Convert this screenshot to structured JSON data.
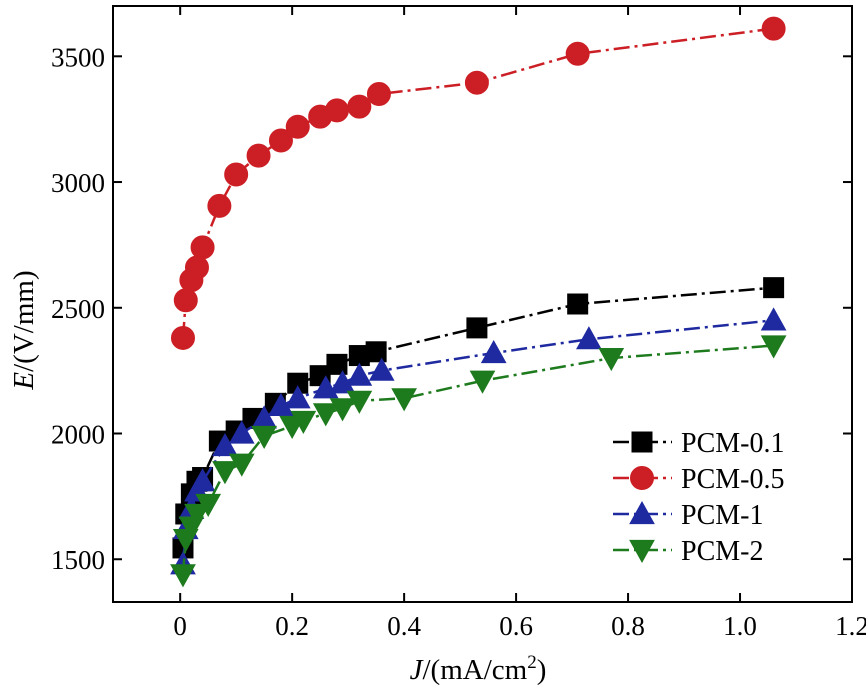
{
  "chart_data": {
    "type": "line",
    "title": "",
    "xlabel": {
      "italic": "J",
      "text": "/(mA/cm",
      "sup": "2",
      "close": ")"
    },
    "ylabel": {
      "italic": "E",
      "text": "/(V/mm)"
    },
    "xlim": [
      -0.12,
      1.2
    ],
    "ylim": [
      1330,
      3700
    ],
    "xticks": [
      0,
      0.2,
      0.4,
      0.6,
      0.8,
      1.0,
      1.2
    ],
    "xtick_labels": [
      "0",
      "0.2",
      "0.4",
      "0.6",
      "0.8",
      "1.0",
      "1.2"
    ],
    "yticks": [
      1500,
      2000,
      2500,
      3000,
      3500
    ],
    "ytick_labels": [
      "1500",
      "2000",
      "2500",
      "3000",
      "3500"
    ],
    "grid": false,
    "legend_position": "bottom-right",
    "series": [
      {
        "name": "PCM-0.1",
        "color": "#000000",
        "marker": "square",
        "dash": "dashdot",
        "x": [
          0.005,
          0.01,
          0.02,
          0.03,
          0.04,
          0.07,
          0.1,
          0.13,
          0.17,
          0.21,
          0.25,
          0.28,
          0.32,
          0.35,
          0.53,
          0.71,
          1.06
        ],
        "y": [
          1545,
          1680,
          1760,
          1810,
          1825,
          1970,
          2010,
          2060,
          2120,
          2200,
          2230,
          2275,
          2310,
          2325,
          2420,
          2515,
          2580
        ]
      },
      {
        "name": "PCM-0.5",
        "color": "#cc1f25",
        "marker": "circle",
        "dash": "dashdot",
        "x": [
          0.005,
          0.01,
          0.02,
          0.03,
          0.04,
          0.07,
          0.1,
          0.14,
          0.18,
          0.21,
          0.25,
          0.28,
          0.32,
          0.355,
          0.53,
          0.71,
          1.06
        ],
        "y": [
          2380,
          2530,
          2610,
          2660,
          2740,
          2905,
          3030,
          3105,
          3165,
          3220,
          3260,
          3285,
          3300,
          3350,
          3395,
          3510,
          3610
        ]
      },
      {
        "name": "PCM-1",
        "color": "#1f2aa0",
        "marker": "triangle-up",
        "dash": "dashdot",
        "x": [
          0.005,
          0.01,
          0.02,
          0.03,
          0.04,
          0.08,
          0.11,
          0.15,
          0.18,
          0.21,
          0.26,
          0.29,
          0.32,
          0.36,
          0.56,
          0.73,
          1.06
        ],
        "y": [
          1480,
          1620,
          1700,
          1770,
          1810,
          1950,
          2000,
          2060,
          2110,
          2140,
          2180,
          2200,
          2230,
          2250,
          2320,
          2375,
          2450
        ]
      },
      {
        "name": "PCM-2",
        "color": "#1d7a1d",
        "marker": "triangle-down",
        "dash": "dashdot",
        "x": [
          0.005,
          0.01,
          0.02,
          0.03,
          0.05,
          0.08,
          0.11,
          0.15,
          0.2,
          0.22,
          0.26,
          0.29,
          0.32,
          0.4,
          0.54,
          0.77,
          1.06
        ],
        "y": [
          1440,
          1580,
          1630,
          1680,
          1720,
          1850,
          1880,
          1990,
          2030,
          2050,
          2080,
          2100,
          2130,
          2140,
          2210,
          2300,
          2350
        ]
      }
    ]
  }
}
